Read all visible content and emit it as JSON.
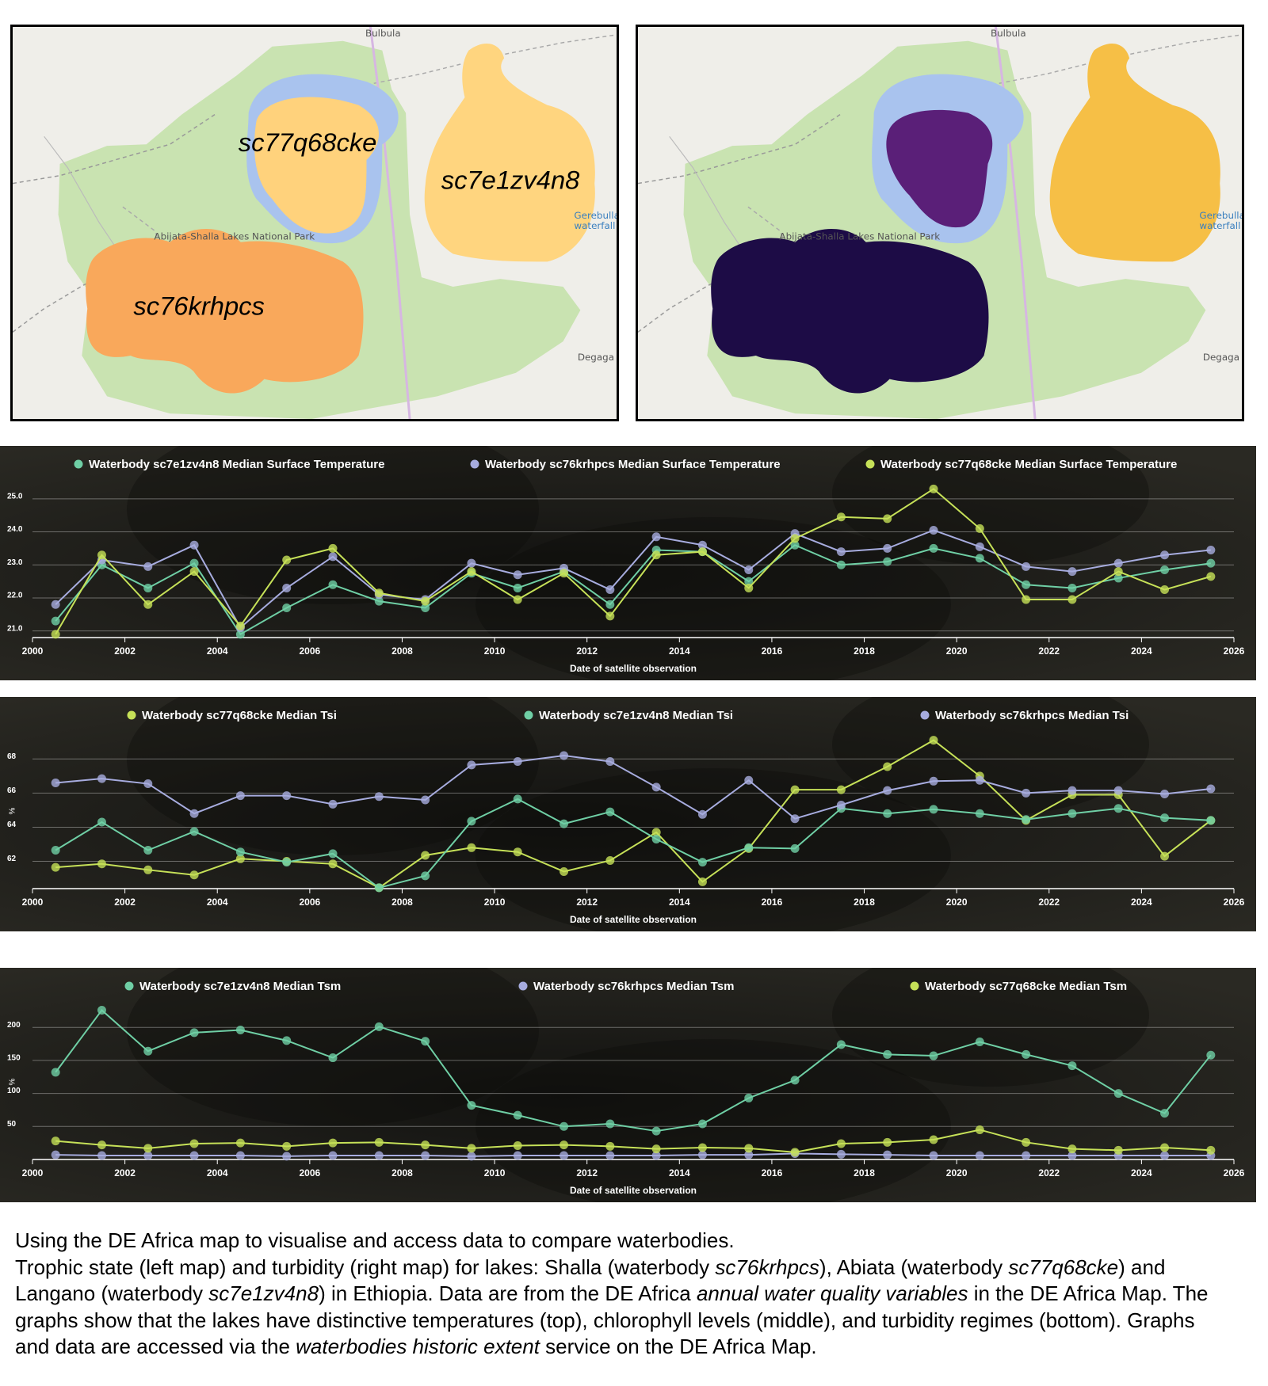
{
  "maps": {
    "places": {
      "north": "Bulbula",
      "park": "Abijata-Shalla Lakes National Park",
      "waterfall": [
        "Gerebulla",
        "waterfall"
      ],
      "south": "Degaga"
    },
    "lake_labels": [
      "sc77q68cke",
      "sc7e1zv4n8",
      "sc76krhpcs"
    ]
  },
  "chart_data": [
    {
      "type": "line",
      "x_label": "Date of satellite observation",
      "x": [
        2000.5,
        2001.5,
        2002.5,
        2003.5,
        2004.5,
        2005.5,
        2006.5,
        2007.5,
        2008.5,
        2009.5,
        2010.5,
        2011.5,
        2012.5,
        2013.5,
        2014.5,
        2015.5,
        2016.5,
        2017.5,
        2018.5,
        2019.5,
        2020.5,
        2021.5,
        2022.5,
        2023.5,
        2024.5,
        2025.5
      ],
      "xlim": [
        2000,
        2026
      ],
      "xticks": [
        2000,
        2002,
        2004,
        2006,
        2008,
        2010,
        2012,
        2014,
        2016,
        2018,
        2020,
        2022,
        2024,
        2026
      ],
      "ylim": [
        20.8,
        25.5
      ],
      "yticks": [
        {
          "value": 21,
          "label": "21.0"
        },
        {
          "value": 22,
          "label": "22.0"
        },
        {
          "value": 23,
          "label": "23.0"
        },
        {
          "value": 24,
          "label": "24.0"
        },
        {
          "value": 25,
          "label": "25.0"
        }
      ],
      "grid": true,
      "series": [
        {
          "name": "Waterbody sc7e1zv4n8 Median Surface Temperature",
          "color": "#6fcfa5",
          "values": [
            21.3,
            23.0,
            22.3,
            23.05,
            20.9,
            21.7,
            22.4,
            21.9,
            21.7,
            22.75,
            22.3,
            22.8,
            21.8,
            23.45,
            23.4,
            22.5,
            23.6,
            23.0,
            23.1,
            23.5,
            23.2,
            22.4,
            22.3,
            22.6,
            22.85,
            23.05
          ]
        },
        {
          "name": "Waterbody sc76krhpcs Median Surface Temperature",
          "color": "#a7acdf",
          "values": [
            21.8,
            23.15,
            22.95,
            23.6,
            21.1,
            22.3,
            23.25,
            22.1,
            21.95,
            23.05,
            22.7,
            22.9,
            22.25,
            23.85,
            23.6,
            22.85,
            23.95,
            23.4,
            23.5,
            24.05,
            23.55,
            22.95,
            22.8,
            23.05,
            23.3,
            23.45
          ]
        },
        {
          "name": "Waterbody sc77q68cke Median Surface Temperature",
          "color": "#c6e158",
          "values": [
            20.9,
            23.3,
            21.8,
            22.8,
            21.15,
            23.15,
            23.5,
            22.15,
            21.9,
            22.8,
            21.95,
            22.75,
            21.45,
            23.3,
            23.4,
            22.3,
            23.8,
            24.45,
            24.4,
            25.3,
            24.1,
            21.95,
            21.95,
            22.8,
            22.25,
            22.65
          ]
        }
      ]
    },
    {
      "type": "line",
      "x_label": "Date of satellite observation",
      "y_label": "%",
      "x": [
        2000.5,
        2001.5,
        2002.5,
        2003.5,
        2004.5,
        2005.5,
        2006.5,
        2007.5,
        2008.5,
        2009.5,
        2010.5,
        2011.5,
        2012.5,
        2013.5,
        2014.5,
        2015.5,
        2016.5,
        2017.5,
        2018.5,
        2019.5,
        2020.5,
        2021.5,
        2022.5,
        2023.5,
        2024.5,
        2025.5
      ],
      "xlim": [
        2000,
        2026
      ],
      "xticks": [
        2000,
        2002,
        2004,
        2006,
        2008,
        2010,
        2012,
        2014,
        2016,
        2018,
        2020,
        2022,
        2024,
        2026
      ],
      "ylim": [
        60.4,
        69.5
      ],
      "yticks": [
        62,
        64,
        66,
        68
      ],
      "grid": true,
      "series": [
        {
          "name": "Waterbody sc77q68cke Median Tsi",
          "color": "#c6e158",
          "values": [
            61.65,
            61.85,
            61.5,
            61.2,
            62.15,
            62.0,
            61.85,
            60.45,
            62.35,
            62.8,
            62.55,
            61.4,
            62.05,
            63.7,
            60.8,
            62.75,
            66.2,
            66.2,
            67.55,
            69.1,
            67.0,
            64.4,
            65.9,
            65.9,
            62.3,
            64.4
          ]
        },
        {
          "name": "Waterbody sc7e1zv4n8 Median Tsi",
          "color": "#6fcfa5",
          "values": [
            62.65,
            64.3,
            62.65,
            63.75,
            62.55,
            61.95,
            62.45,
            60.45,
            61.15,
            64.35,
            65.65,
            64.2,
            64.9,
            63.3,
            61.95,
            62.8,
            62.75,
            65.1,
            64.8,
            65.05,
            64.8,
            64.45,
            64.8,
            65.1,
            64.55,
            64.4
          ]
        },
        {
          "name": "Waterbody sc76krhpcs Median Tsi",
          "color": "#a7acdf",
          "values": [
            66.6,
            66.85,
            66.55,
            64.8,
            65.85,
            65.85,
            65.35,
            65.8,
            65.6,
            67.65,
            67.85,
            68.2,
            67.85,
            66.35,
            64.75,
            66.75,
            64.5,
            65.3,
            66.15,
            66.7,
            66.75,
            66.0,
            66.15,
            66.15,
            65.95,
            66.25
          ]
        }
      ]
    },
    {
      "type": "line",
      "x_label": "Date of satellite observation",
      "y_label": "%",
      "x": [
        2000.5,
        2001.5,
        2002.5,
        2003.5,
        2004.5,
        2005.5,
        2006.5,
        2007.5,
        2008.5,
        2009.5,
        2010.5,
        2011.5,
        2012.5,
        2013.5,
        2014.5,
        2015.5,
        2016.5,
        2017.5,
        2018.5,
        2019.5,
        2020.5,
        2021.5,
        2022.5,
        2023.5,
        2024.5,
        2025.5
      ],
      "xlim": [
        2000,
        2026
      ],
      "xticks": [
        2000,
        2002,
        2004,
        2006,
        2008,
        2010,
        2012,
        2014,
        2016,
        2018,
        2020,
        2022,
        2024,
        2026
      ],
      "ylim": [
        0,
        235
      ],
      "yticks": [
        50,
        100,
        150,
        200
      ],
      "grid": true,
      "series": [
        {
          "name": "Waterbody sc7e1zv4n8 Median Tsm",
          "color": "#6fcfa5",
          "values": [
            132,
            226,
            164,
            192,
            196,
            180,
            154,
            201,
            179,
            82,
            67,
            50,
            54,
            43,
            54,
            93,
            120,
            174,
            159,
            157,
            178,
            159,
            142,
            100,
            70,
            158
          ]
        },
        {
          "name": "Waterbody sc76krhpcs Median Tsm",
          "color": "#a7acdf",
          "values": [
            7,
            6,
            6,
            6,
            6,
            5,
            6,
            6,
            6,
            5,
            6,
            6,
            6,
            6,
            7,
            7,
            9,
            8,
            7,
            6,
            6,
            6,
            6,
            6,
            6,
            6
          ]
        },
        {
          "name": "Waterbody sc77q68cke Median Tsm",
          "color": "#c6e158",
          "values": [
            28,
            22,
            17,
            24,
            25,
            20,
            25,
            26,
            22,
            17,
            21,
            22,
            20,
            16,
            18,
            17,
            11,
            24,
            26,
            30,
            45,
            26,
            16,
            14,
            18,
            14
          ]
        }
      ]
    }
  ],
  "caption": {
    "paragraphs": [
      [
        {
          "text": "Using the DE Africa map to visualise and access data to compare waterbodies."
        }
      ],
      [
        {
          "text": "Trophic state (left map) and turbidity (right map) for lakes: Shalla (waterbody "
        },
        {
          "text": "sc76krhpcs",
          "italic": true
        },
        {
          "text": "), Abiata (waterbody "
        },
        {
          "text": "sc77q68cke",
          "italic": true
        },
        {
          "text": ") and Langano (waterbody "
        },
        {
          "text": "sc7e1zv4n8",
          "italic": true
        },
        {
          "text": ") in Ethiopia. Data are from the DE Africa "
        },
        {
          "text": "annual water quality variables",
          "italic": true
        },
        {
          "text": " in the DE Africa Map. The graphs show that the lakes have distinctive temperatures (top), chlorophyll levels (middle), and turbidity regimes (bottom). Graphs and data are accessed via the "
        },
        {
          "text": "waterbodies historic extent",
          "italic": true
        },
        {
          "text": " service on the DE Africa Map."
        }
      ]
    ]
  }
}
